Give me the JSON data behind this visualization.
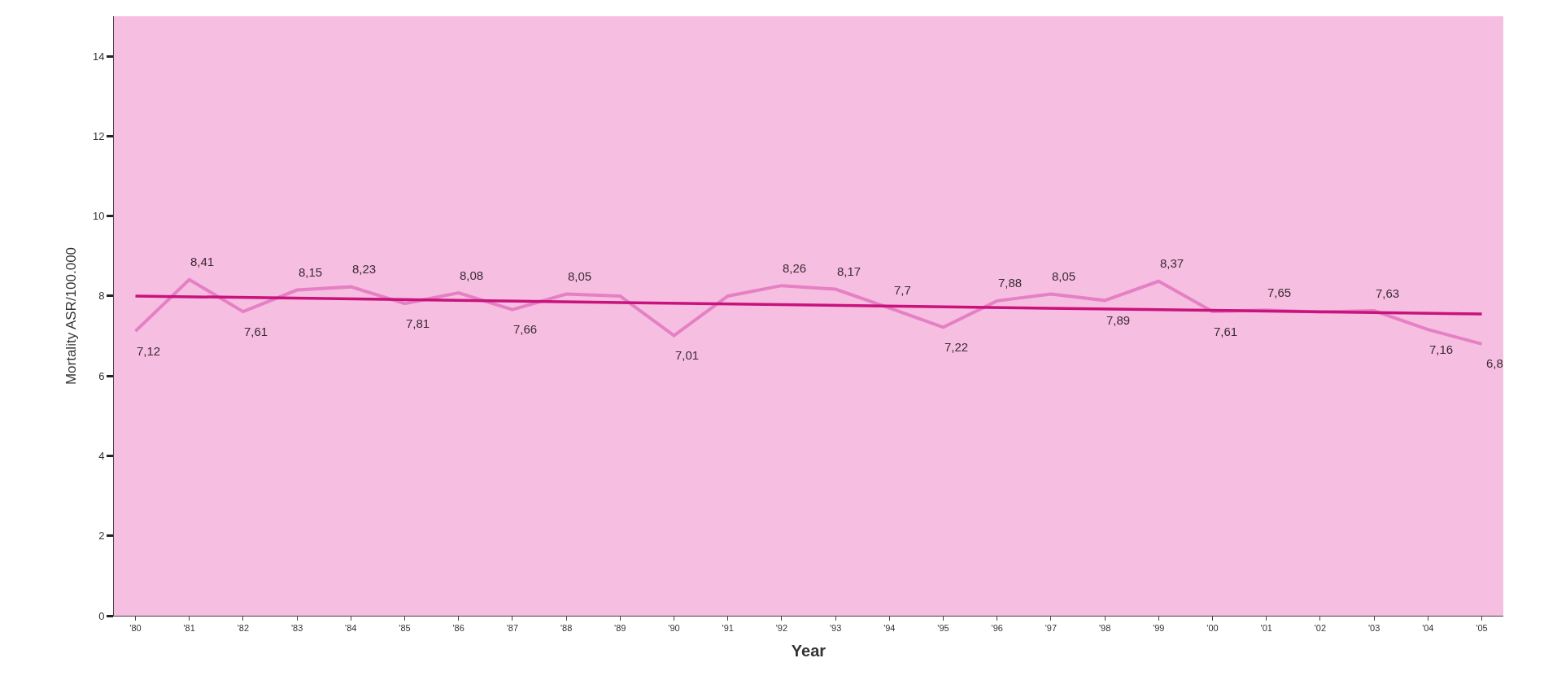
{
  "chart_data": {
    "type": "line",
    "xlabel": "Year",
    "ylabel": "Mortality ASR/100.000",
    "categories": [
      "'80",
      "'81",
      "'82",
      "'83",
      "'84",
      "'85",
      "'86",
      "'87",
      "'88",
      "'89",
      "'90",
      "'91",
      "'92",
      "'93",
      "'94",
      "'95",
      "'96",
      "'97",
      "'98",
      "'99",
      "'00",
      "'01",
      "'02",
      "'03",
      "'04",
      "'05"
    ],
    "series": [
      {
        "color": "#e580c4",
        "values": [
          7.12,
          8.41,
          7.61,
          8.15,
          8.23,
          7.81,
          8.08,
          7.66,
          8.05,
          8.0,
          7.01,
          8.0,
          8.26,
          8.17,
          7.7,
          7.22,
          7.88,
          8.05,
          7.89,
          8.37,
          7.61,
          7.65,
          7.6,
          7.63,
          7.16,
          6.8
        ],
        "value_labels": [
          "7,12",
          "8,41",
          "7,61",
          "8,15",
          "8,23",
          "7,81",
          "8,08",
          "7,66",
          "8,05",
          null,
          "7,01",
          null,
          "8,26",
          "8,17",
          "7,7",
          "7,22",
          "7,88",
          "8,05",
          "7,89",
          "8,37",
          "7,61",
          "7,65",
          null,
          "7,63",
          "7,16",
          "6,8"
        ]
      },
      {
        "type": "line",
        "color": "#c8127c",
        "values": [
          8.0,
          null,
          null,
          null,
          null,
          null,
          null,
          null,
          null,
          null,
          null,
          null,
          null,
          null,
          null,
          null,
          null,
          null,
          null,
          null,
          null,
          null,
          null,
          null,
          null,
          7.55
        ]
      }
    ],
    "ylim": [
      0,
      15
    ],
    "yticks": [
      0,
      2,
      4,
      6,
      8,
      10,
      12,
      14
    ],
    "grid": false,
    "marker": "none"
  }
}
